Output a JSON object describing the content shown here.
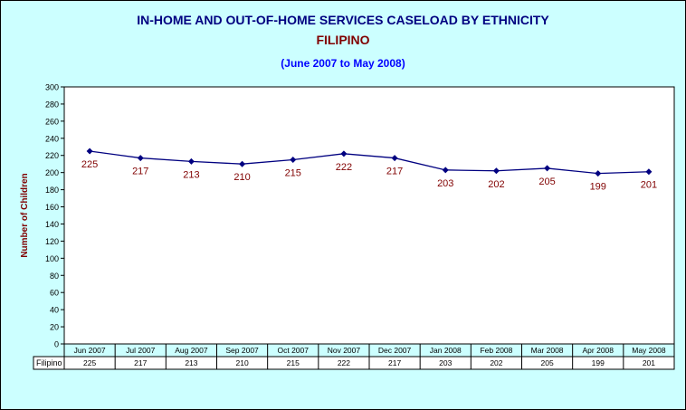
{
  "chart_data": {
    "type": "line",
    "title": "IN-HOME AND OUT-OF-HOME SERVICES CASELOAD BY ETHNICITY",
    "subtitle": "FILIPINO",
    "date_range": "(June 2007 to May 2008)",
    "ylabel": "Number of Children",
    "ylim": [
      0,
      300
    ],
    "ytick_step": 20,
    "grid": false,
    "categories": [
      "Jun 2007",
      "Jul 2007",
      "Aug 2007",
      "Sep 2007",
      "Oct 2007",
      "Nov 2007",
      "Dec 2007",
      "Jan 2008",
      "Feb 2008",
      "Mar 2008",
      "Apr 2008",
      "May 2008"
    ],
    "series": [
      {
        "name": "Filipino",
        "values": [
          225,
          217,
          213,
          210,
          215,
          222,
          217,
          203,
          202,
          205,
          199,
          201
        ]
      }
    ],
    "data_table": true,
    "colors": {
      "background": "#ccffff",
      "plot_area": "#ffffff",
      "line": "#000080",
      "data_label": "#800000",
      "title": "#000080",
      "subtitle": "#800000",
      "date_range": "#0000ff",
      "ylabel": "#800000"
    }
  }
}
